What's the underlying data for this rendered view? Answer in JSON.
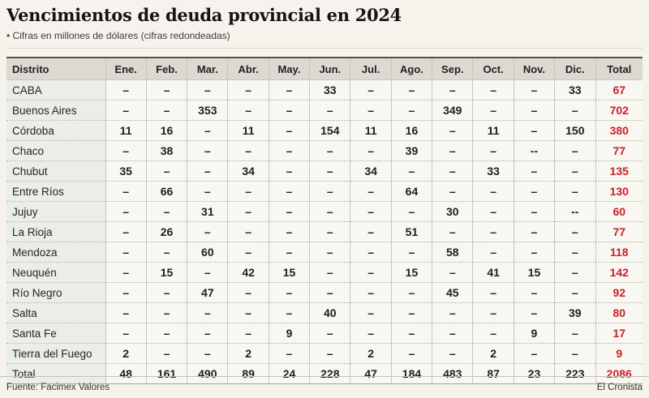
{
  "page": {
    "title": "Vencimientos de deuda provincial en 2024",
    "subtitle": "• Cifras en millones de dólares (cifras redondeadas)",
    "source": "Fuente: Facimex Valores",
    "credit": "El Cronista"
  },
  "colors": {
    "accent_red": "#c9202d",
    "header_bg": "#dcd9d2",
    "district_col_bg": "#eaeee6",
    "cell_bg": "#f9f7f1",
    "page_bg": "#f6f3ed",
    "grid_line": "#c9c6bf",
    "text_dark": "#21201e"
  },
  "chart_data": {
    "type": "table",
    "title": "Vencimientos de deuda provincial en 2024",
    "unit": "millones de dólares (cifras redondeadas)",
    "columns": [
      "Distrito",
      "Ene.",
      "Feb.",
      "Mar.",
      "Abr.",
      "May.",
      "Jun.",
      "Jul.",
      "Ago.",
      "Sep.",
      "Oct.",
      "Nov.",
      "Dic.",
      "Total"
    ],
    "rows": [
      {
        "district": "CABA",
        "values": [
          "–",
          "–",
          "–",
          "–",
          "–",
          "33",
          "–",
          "–",
          "–",
          "–",
          "–",
          "33"
        ],
        "total": "67",
        "is_total_row": false
      },
      {
        "district": "Buenos Aires",
        "values": [
          "–",
          "–",
          "353",
          "–",
          "–",
          "–",
          "–",
          "–",
          "349",
          "–",
          "–",
          "–"
        ],
        "total": "702",
        "is_total_row": false
      },
      {
        "district": "Córdoba",
        "values": [
          "11",
          "16",
          "–",
          "11",
          "–",
          "154",
          "11",
          "16",
          "–",
          "11",
          "–",
          "150"
        ],
        "total": "380",
        "is_total_row": false
      },
      {
        "district": "Chaco",
        "values": [
          "–",
          "38",
          "–",
          "–",
          "–",
          "–",
          "–",
          "39",
          "–",
          "–",
          "--",
          "–"
        ],
        "total": "77",
        "is_total_row": false
      },
      {
        "district": "Chubut",
        "values": [
          "35",
          "–",
          "–",
          "34",
          "–",
          "–",
          "34",
          "–",
          "–",
          "33",
          "–",
          "–"
        ],
        "total": "135",
        "is_total_row": false
      },
      {
        "district": "Entre Ríos",
        "values": [
          "–",
          "66",
          "–",
          "–",
          "–",
          "–",
          "–",
          "64",
          "–",
          "–",
          "–",
          "–"
        ],
        "total": "130",
        "is_total_row": false
      },
      {
        "district": "Jujuy",
        "values": [
          "–",
          "–",
          "31",
          "–",
          "–",
          "–",
          "–",
          "–",
          "30",
          "–",
          "–",
          "--"
        ],
        "total": "60",
        "is_total_row": false
      },
      {
        "district": "La Rioja",
        "values": [
          "–",
          "26",
          "–",
          "–",
          "–",
          "–",
          "–",
          "51",
          "–",
          "–",
          "–",
          "–"
        ],
        "total": "77",
        "is_total_row": false
      },
      {
        "district": "Mendoza",
        "values": [
          "–",
          "–",
          "60",
          "–",
          "–",
          "–",
          "–",
          "–",
          "58",
          "–",
          "–",
          "–"
        ],
        "total": "118",
        "is_total_row": false
      },
      {
        "district": "Neuquén",
        "values": [
          "–",
          "15",
          "–",
          "42",
          "15",
          "–",
          "–",
          "15",
          "–",
          "41",
          "15",
          "–"
        ],
        "total": "142",
        "is_total_row": false
      },
      {
        "district": "Río Negro",
        "values": [
          "–",
          "–",
          "47",
          "–",
          "–",
          "–",
          "–",
          "–",
          "45",
          "–",
          "–",
          "–"
        ],
        "total": "92",
        "is_total_row": false
      },
      {
        "district": "Salta",
        "values": [
          "–",
          "–",
          "–",
          "–",
          "–",
          "40",
          "–",
          "–",
          "–",
          "–",
          "–",
          "39"
        ],
        "total": "80",
        "is_total_row": false
      },
      {
        "district": "Santa Fe",
        "values": [
          "–",
          "–",
          "–",
          "–",
          "9",
          "–",
          "–",
          "–",
          "–",
          "–",
          "9",
          "–"
        ],
        "total": "17",
        "is_total_row": false
      },
      {
        "district": "Tierra del Fuego",
        "values": [
          "2",
          "–",
          "–",
          "2",
          "–",
          "–",
          "2",
          "–",
          "–",
          "2",
          "–",
          "–"
        ],
        "total": "9",
        "is_total_row": false
      },
      {
        "district": "Total",
        "values": [
          "48",
          "161",
          "490",
          "89",
          "24",
          "228",
          "47",
          "184",
          "483",
          "87",
          "23",
          "223"
        ],
        "total": "2086",
        "is_total_row": true
      }
    ]
  }
}
